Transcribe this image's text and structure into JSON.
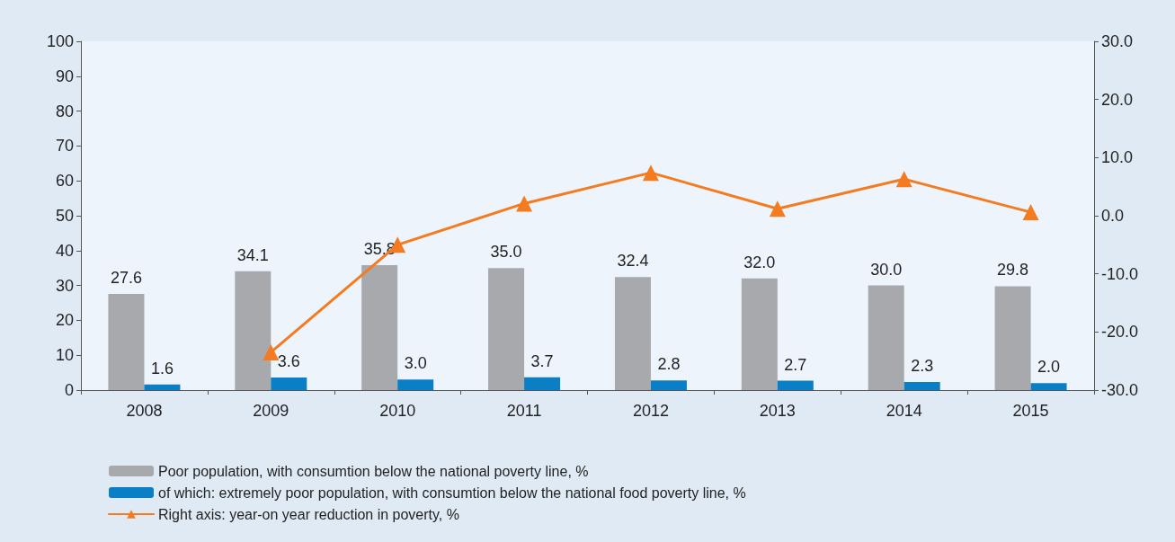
{
  "chart_data": {
    "type": "bar",
    "categories": [
      "2008",
      "2009",
      "2010",
      "2011",
      "2012",
      "2013",
      "2014",
      "2015"
    ],
    "series": [
      {
        "name": "Poor population, with consumtion below the national poverty line, %",
        "color": "#a7a9ac",
        "values": [
          27.6,
          34.1,
          35.8,
          35.0,
          32.4,
          32.0,
          30.0,
          29.8
        ],
        "value_labels": [
          "27.6",
          "34.1",
          "35.8",
          "35.0",
          "32.4",
          "32.0",
          "30.0",
          "29.8"
        ]
      },
      {
        "name": "of which: extremely poor population, with consumtion below the national food poverty line, %",
        "color": "#0a7fc6",
        "values": [
          1.6,
          3.6,
          3.0,
          3.7,
          2.8,
          2.7,
          2.3,
          2.0
        ],
        "value_labels": [
          "1.6",
          "3.6",
          "3.0",
          "3.7",
          "2.8",
          "2.7",
          "2.3",
          "2.0"
        ]
      },
      {
        "type": "line",
        "name": "Right axis: year-on year reduction in poverty, %",
        "color": "#f47b20",
        "axis": "y2",
        "marker": "triangle",
        "values": [
          null,
          -23.5,
          -5.0,
          2.1,
          7.4,
          1.2,
          6.3,
          0.6
        ]
      }
    ],
    "ylim": [
      0,
      100
    ],
    "yticks": [
      0,
      10,
      20,
      30,
      40,
      50,
      60,
      70,
      80,
      90,
      100
    ],
    "y2lim": [
      -30,
      30
    ],
    "y2ticks": [
      {
        "value": -30,
        "label": "-30.0"
      },
      {
        "value": -20,
        "label": "-20.0"
      },
      {
        "value": -10,
        "label": "-10.0"
      },
      {
        "value": 0,
        "label": "0.0"
      },
      {
        "value": 10,
        "label": "10.0"
      },
      {
        "value": 20,
        "label": "20.0"
      },
      {
        "value": 30,
        "label": "30.0"
      }
    ],
    "grid": false,
    "legend": "bottom"
  }
}
